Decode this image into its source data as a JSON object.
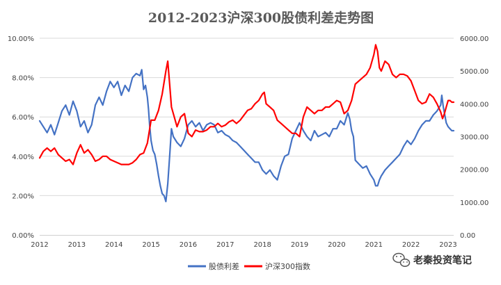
{
  "chart_data": {
    "type": "line",
    "title": "2012-2023沪深300股债利差走势图",
    "x_ticks": [
      "2012",
      "2013",
      "2014",
      "2015",
      "2016",
      "2017",
      "2018",
      "2019",
      "2020",
      "2021",
      "2022",
      "2023"
    ],
    "y_left_ticks": [
      "0.00%",
      "2.00%",
      "4.00%",
      "6.00%",
      "8.00%",
      "10.00%"
    ],
    "y_right_ticks": [
      "0.00",
      "1000.00",
      "2000.00",
      "3000.00",
      "4000.00",
      "5000.00",
      "6000.00"
    ],
    "ylim_left": [
      0,
      10
    ],
    "ylim_right": [
      0,
      6000
    ],
    "xlim": [
      2012,
      2023.15
    ],
    "grid": true,
    "legend_position": "bottom",
    "series": [
      {
        "name": "股债利差",
        "axis": "left",
        "unit": "%",
        "color": "#4472C4",
        "points": [
          [
            2012.0,
            5.8
          ],
          [
            2012.1,
            5.5
          ],
          [
            2012.2,
            5.2
          ],
          [
            2012.3,
            5.6
          ],
          [
            2012.4,
            5.1
          ],
          [
            2012.5,
            5.7
          ],
          [
            2012.6,
            6.3
          ],
          [
            2012.7,
            6.6
          ],
          [
            2012.8,
            6.1
          ],
          [
            2012.9,
            6.8
          ],
          [
            2013.0,
            6.3
          ],
          [
            2013.1,
            5.5
          ],
          [
            2013.2,
            5.8
          ],
          [
            2013.3,
            5.2
          ],
          [
            2013.4,
            5.6
          ],
          [
            2013.5,
            6.6
          ],
          [
            2013.6,
            7.0
          ],
          [
            2013.7,
            6.6
          ],
          [
            2013.8,
            7.3
          ],
          [
            2013.9,
            7.8
          ],
          [
            2014.0,
            7.5
          ],
          [
            2014.1,
            7.8
          ],
          [
            2014.2,
            7.1
          ],
          [
            2014.3,
            7.6
          ],
          [
            2014.4,
            7.3
          ],
          [
            2014.5,
            8.0
          ],
          [
            2014.6,
            8.2
          ],
          [
            2014.7,
            8.1
          ],
          [
            2014.75,
            8.4
          ],
          [
            2014.8,
            7.4
          ],
          [
            2014.85,
            7.6
          ],
          [
            2014.9,
            7.0
          ],
          [
            2014.93,
            6.4
          ],
          [
            2014.96,
            5.6
          ],
          [
            2015.0,
            4.8
          ],
          [
            2015.05,
            4.3
          ],
          [
            2015.1,
            4.1
          ],
          [
            2015.15,
            3.6
          ],
          [
            2015.2,
            3.0
          ],
          [
            2015.25,
            2.5
          ],
          [
            2015.3,
            2.1
          ],
          [
            2015.35,
            2.0
          ],
          [
            2015.4,
            1.7
          ],
          [
            2015.45,
            2.6
          ],
          [
            2015.5,
            4.0
          ],
          [
            2015.55,
            5.4
          ],
          [
            2015.6,
            5.0
          ],
          [
            2015.7,
            4.7
          ],
          [
            2015.8,
            4.5
          ],
          [
            2015.9,
            4.9
          ],
          [
            2016.0,
            5.6
          ],
          [
            2016.1,
            5.8
          ],
          [
            2016.2,
            5.5
          ],
          [
            2016.3,
            5.7
          ],
          [
            2016.4,
            5.3
          ],
          [
            2016.5,
            5.6
          ],
          [
            2016.6,
            5.7
          ],
          [
            2016.7,
            5.6
          ],
          [
            2016.8,
            5.2
          ],
          [
            2016.9,
            5.3
          ],
          [
            2017.0,
            5.1
          ],
          [
            2017.1,
            5.0
          ],
          [
            2017.2,
            4.8
          ],
          [
            2017.3,
            4.7
          ],
          [
            2017.4,
            4.5
          ],
          [
            2017.5,
            4.3
          ],
          [
            2017.6,
            4.1
          ],
          [
            2017.7,
            3.9
          ],
          [
            2017.8,
            3.7
          ],
          [
            2017.9,
            3.7
          ],
          [
            2018.0,
            3.3
          ],
          [
            2018.1,
            3.1
          ],
          [
            2018.2,
            3.3
          ],
          [
            2018.3,
            3.0
          ],
          [
            2018.4,
            2.8
          ],
          [
            2018.5,
            3.5
          ],
          [
            2018.6,
            4.0
          ],
          [
            2018.7,
            4.1
          ],
          [
            2018.8,
            4.9
          ],
          [
            2018.9,
            5.3
          ],
          [
            2019.0,
            5.7
          ],
          [
            2019.1,
            5.3
          ],
          [
            2019.2,
            5.0
          ],
          [
            2019.3,
            4.8
          ],
          [
            2019.4,
            5.3
          ],
          [
            2019.5,
            5.0
          ],
          [
            2019.6,
            5.1
          ],
          [
            2019.7,
            5.2
          ],
          [
            2019.8,
            5.0
          ],
          [
            2019.9,
            5.4
          ],
          [
            2020.0,
            5.4
          ],
          [
            2020.1,
            5.8
          ],
          [
            2020.2,
            5.6
          ],
          [
            2020.3,
            6.2
          ],
          [
            2020.35,
            5.9
          ],
          [
            2020.4,
            5.3
          ],
          [
            2020.45,
            5.0
          ],
          [
            2020.5,
            3.8
          ],
          [
            2020.6,
            3.6
          ],
          [
            2020.7,
            3.4
          ],
          [
            2020.8,
            3.5
          ],
          [
            2020.9,
            3.1
          ],
          [
            2021.0,
            2.8
          ],
          [
            2021.05,
            2.5
          ],
          [
            2021.1,
            2.5
          ],
          [
            2021.15,
            2.8
          ],
          [
            2021.2,
            3.0
          ],
          [
            2021.3,
            3.3
          ],
          [
            2021.4,
            3.5
          ],
          [
            2021.5,
            3.7
          ],
          [
            2021.6,
            3.9
          ],
          [
            2021.7,
            4.1
          ],
          [
            2021.8,
            4.5
          ],
          [
            2021.9,
            4.8
          ],
          [
            2022.0,
            4.6
          ],
          [
            2022.1,
            4.9
          ],
          [
            2022.2,
            5.3
          ],
          [
            2022.3,
            5.6
          ],
          [
            2022.4,
            5.8
          ],
          [
            2022.5,
            5.8
          ],
          [
            2022.6,
            6.1
          ],
          [
            2022.7,
            6.3
          ],
          [
            2022.8,
            6.6
          ],
          [
            2022.83,
            7.1
          ],
          [
            2022.87,
            6.5
          ],
          [
            2022.9,
            6.2
          ],
          [
            2022.95,
            5.7
          ],
          [
            2023.0,
            5.5
          ],
          [
            2023.05,
            5.4
          ],
          [
            2023.1,
            5.3
          ],
          [
            2023.15,
            5.3
          ]
        ]
      },
      {
        "name": "沪深300指数",
        "axis": "right",
        "color": "#FF0000",
        "points": [
          [
            2012.0,
            2350
          ],
          [
            2012.1,
            2550
          ],
          [
            2012.2,
            2650
          ],
          [
            2012.3,
            2550
          ],
          [
            2012.4,
            2650
          ],
          [
            2012.5,
            2450
          ],
          [
            2012.6,
            2350
          ],
          [
            2012.7,
            2250
          ],
          [
            2012.8,
            2300
          ],
          [
            2012.9,
            2150
          ],
          [
            2013.0,
            2500
          ],
          [
            2013.1,
            2750
          ],
          [
            2013.2,
            2500
          ],
          [
            2013.3,
            2600
          ],
          [
            2013.4,
            2450
          ],
          [
            2013.5,
            2250
          ],
          [
            2013.6,
            2300
          ],
          [
            2013.7,
            2400
          ],
          [
            2013.8,
            2400
          ],
          [
            2013.9,
            2300
          ],
          [
            2014.0,
            2250
          ],
          [
            2014.1,
            2200
          ],
          [
            2014.2,
            2150
          ],
          [
            2014.3,
            2150
          ],
          [
            2014.4,
            2150
          ],
          [
            2014.5,
            2200
          ],
          [
            2014.6,
            2300
          ],
          [
            2014.7,
            2450
          ],
          [
            2014.8,
            2500
          ],
          [
            2014.9,
            2800
          ],
          [
            2015.0,
            3500
          ],
          [
            2015.1,
            3500
          ],
          [
            2015.2,
            3800
          ],
          [
            2015.3,
            4300
          ],
          [
            2015.4,
            5000
          ],
          [
            2015.45,
            5300
          ],
          [
            2015.5,
            4600
          ],
          [
            2015.55,
            3900
          ],
          [
            2015.6,
            3700
          ],
          [
            2015.7,
            3300
          ],
          [
            2015.8,
            3600
          ],
          [
            2015.9,
            3700
          ],
          [
            2016.0,
            3100
          ],
          [
            2016.1,
            3000
          ],
          [
            2016.2,
            3200
          ],
          [
            2016.3,
            3150
          ],
          [
            2016.4,
            3150
          ],
          [
            2016.5,
            3200
          ],
          [
            2016.6,
            3300
          ],
          [
            2016.7,
            3300
          ],
          [
            2016.8,
            3400
          ],
          [
            2016.9,
            3300
          ],
          [
            2017.0,
            3350
          ],
          [
            2017.1,
            3450
          ],
          [
            2017.2,
            3500
          ],
          [
            2017.3,
            3400
          ],
          [
            2017.4,
            3500
          ],
          [
            2017.5,
            3650
          ],
          [
            2017.6,
            3800
          ],
          [
            2017.7,
            3850
          ],
          [
            2017.8,
            4000
          ],
          [
            2017.9,
            4100
          ],
          [
            2018.0,
            4300
          ],
          [
            2018.05,
            4350
          ],
          [
            2018.1,
            4000
          ],
          [
            2018.2,
            3900
          ],
          [
            2018.3,
            3800
          ],
          [
            2018.4,
            3500
          ],
          [
            2018.5,
            3400
          ],
          [
            2018.6,
            3300
          ],
          [
            2018.7,
            3200
          ],
          [
            2018.8,
            3100
          ],
          [
            2018.9,
            3100
          ],
          [
            2019.0,
            3000
          ],
          [
            2019.1,
            3600
          ],
          [
            2019.2,
            3900
          ],
          [
            2019.3,
            3800
          ],
          [
            2019.4,
            3700
          ],
          [
            2019.5,
            3800
          ],
          [
            2019.6,
            3800
          ],
          [
            2019.7,
            3900
          ],
          [
            2019.8,
            3900
          ],
          [
            2019.9,
            4000
          ],
          [
            2020.0,
            4100
          ],
          [
            2020.1,
            4050
          ],
          [
            2020.2,
            3700
          ],
          [
            2020.3,
            3800
          ],
          [
            2020.4,
            4100
          ],
          [
            2020.5,
            4600
          ],
          [
            2020.6,
            4700
          ],
          [
            2020.7,
            4800
          ],
          [
            2020.8,
            4900
          ],
          [
            2020.9,
            5100
          ],
          [
            2021.0,
            5500
          ],
          [
            2021.05,
            5800
          ],
          [
            2021.1,
            5600
          ],
          [
            2021.15,
            5100
          ],
          [
            2021.2,
            5000
          ],
          [
            2021.3,
            5300
          ],
          [
            2021.4,
            5200
          ],
          [
            2021.5,
            4900
          ],
          [
            2021.6,
            4800
          ],
          [
            2021.7,
            4900
          ],
          [
            2021.8,
            4900
          ],
          [
            2021.9,
            4850
          ],
          [
            2022.0,
            4700
          ],
          [
            2022.1,
            4400
          ],
          [
            2022.2,
            4100
          ],
          [
            2022.3,
            4000
          ],
          [
            2022.4,
            4050
          ],
          [
            2022.5,
            4300
          ],
          [
            2022.6,
            4200
          ],
          [
            2022.7,
            4000
          ],
          [
            2022.8,
            3750
          ],
          [
            2022.85,
            3550
          ],
          [
            2022.9,
            3700
          ],
          [
            2022.95,
            3900
          ],
          [
            2023.0,
            4100
          ],
          [
            2023.05,
            4100
          ],
          [
            2023.1,
            4050
          ],
          [
            2023.15,
            4050
          ]
        ]
      }
    ]
  },
  "watermark": {
    "text": "老秦投资笔记",
    "icon": "wechat-icon"
  }
}
